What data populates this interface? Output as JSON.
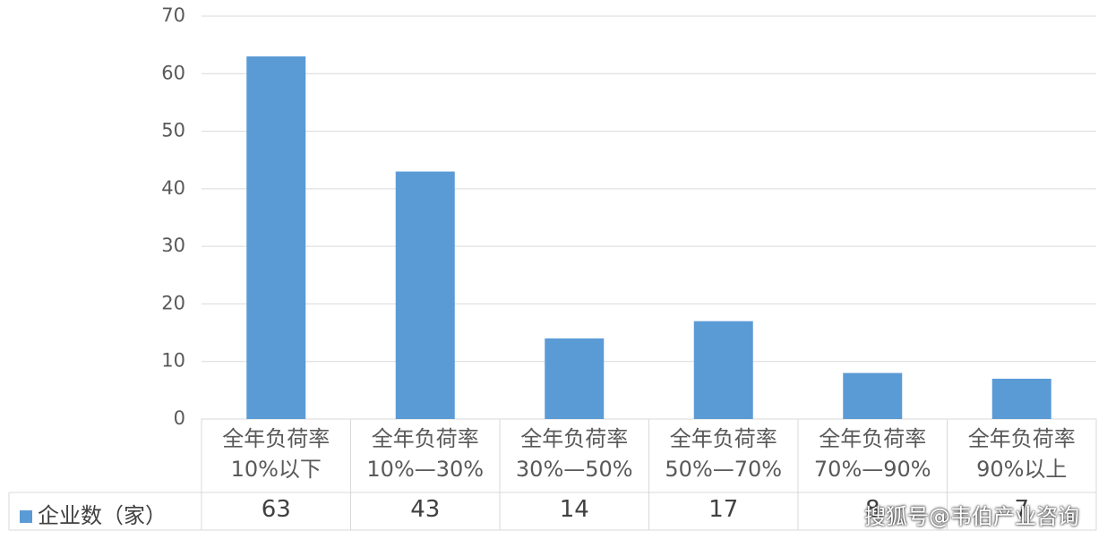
{
  "chart_data": {
    "type": "bar",
    "categories": [
      "全年负荷率\n10%以下",
      "全年负荷率\n10%—30%",
      "全年负荷率\n30%—50%",
      "全年负荷率\n50%—70%",
      "全年负荷率\n70%—90%",
      "全年负荷率\n90%以上"
    ],
    "series": [
      {
        "name": "企业数（家）",
        "color": "#5b9bd5",
        "values": [
          63,
          43,
          14,
          17,
          8,
          7
        ]
      }
    ],
    "ylim": [
      0,
      70
    ],
    "yticks": [
      0,
      10,
      20,
      30,
      40,
      50,
      60,
      70
    ],
    "grid": true,
    "watermark": "搜狐号@韦伯产业咨询"
  }
}
